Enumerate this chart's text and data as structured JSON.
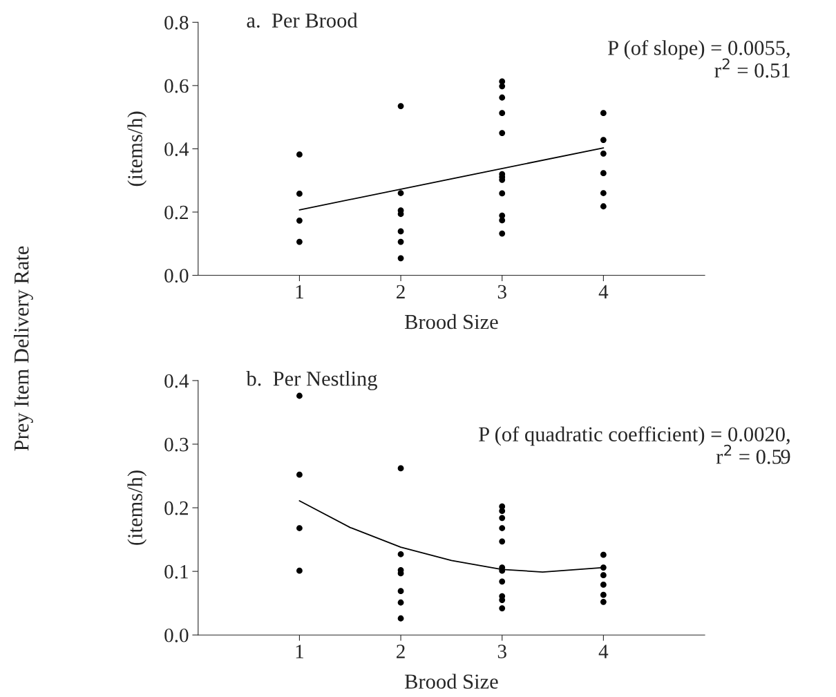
{
  "chart_data": [
    {
      "type": "scatter",
      "title": "a.  Per Brood",
      "xlabel": "Brood Size",
      "ylabel": "(items/h)",
      "xlim": [
        0,
        5
      ],
      "xticks": [
        1,
        2,
        3,
        4
      ],
      "ylim": [
        0,
        0.8
      ],
      "yticks": [
        {
          "value": 0,
          "label": "0.0"
        },
        {
          "value": 0.2,
          "label": "0.2"
        },
        {
          "value": 0.4,
          "label": "0.4"
        },
        {
          "value": 0.6,
          "label": "0.6"
        },
        {
          "value": 0.8,
          "label": "0.8"
        }
      ],
      "grid": false,
      "legend": false,
      "annotations": [
        "Prey Item Delivery Rate",
        "P (of slope) = 0.0055,\nr$^{2}$ = 0.51"
      ],
      "series": [
        {
          "marker": "circle",
          "color": "#000000",
          "x": [
            1,
            1,
            1,
            1,
            2,
            2,
            2,
            2,
            2,
            2,
            2,
            3,
            3,
            3,
            3,
            3,
            3,
            3,
            3,
            3,
            3,
            3,
            3,
            4,
            4,
            4,
            4,
            4,
            4
          ],
          "values": [
            0.382,
            0.258,
            0.173,
            0.106,
            0.535,
            0.26,
            0.205,
            0.194,
            0.139,
            0.106,
            0.054,
            0.613,
            0.598,
            0.562,
            0.513,
            0.45,
            0.32,
            0.311,
            0.302,
            0.259,
            0.189,
            0.174,
            0.132,
            0.513,
            0.428,
            0.385,
            0.323,
            0.26,
            0.218
          ]
        },
        {
          "type": "line",
          "color": "#000000",
          "line_style": "solid",
          "marker": "none",
          "x": [
            1,
            4
          ],
          "values": [
            0.207,
            0.403
          ]
        }
      ]
    },
    {
      "type": "scatter",
      "title": "b.  Per Nestling",
      "xlabel": "Brood Size",
      "ylabel": "(items/h)",
      "xlim": [
        0,
        5
      ],
      "xticks": [
        1,
        2,
        3,
        4
      ],
      "ylim": [
        0,
        0.4
      ],
      "yticks": [
        {
          "value": 0,
          "label": "0.0"
        },
        {
          "value": 0.1,
          "label": "0.1"
        },
        {
          "value": 0.2,
          "label": "0.2"
        },
        {
          "value": 0.3,
          "label": "0.3"
        },
        {
          "value": 0.4,
          "label": "0.4"
        }
      ],
      "grid": false,
      "legend": false,
      "annotations": [
        "P (of quadratic coefficient) = 0.0020,\nr$^{2}$ = 0.59"
      ],
      "series": [
        {
          "marker": "circle",
          "color": "#000000",
          "x": [
            1,
            1,
            1,
            1,
            2,
            2,
            2,
            2,
            2,
            2,
            2,
            3,
            3,
            3,
            3,
            3,
            3,
            3,
            3,
            3,
            3,
            3,
            4,
            4,
            4,
            4,
            4,
            4
          ],
          "values": [
            0.376,
            0.252,
            0.168,
            0.101,
            0.262,
            0.127,
            0.102,
            0.097,
            0.069,
            0.051,
            0.026,
            0.202,
            0.195,
            0.184,
            0.168,
            0.147,
            0.106,
            0.101,
            0.084,
            0.061,
            0.055,
            0.042,
            0.126,
            0.106,
            0.094,
            0.079,
            0.063,
            0.052
          ]
        },
        {
          "type": "line",
          "color": "#000000",
          "line_style": "solid",
          "marker": "none",
          "x": [
            1,
            1.5,
            2,
            2.5,
            3,
            3.4,
            4
          ],
          "values": [
            0.211,
            0.169,
            0.138,
            0.117,
            0.103,
            0.099,
            0.106
          ]
        }
      ]
    }
  ]
}
